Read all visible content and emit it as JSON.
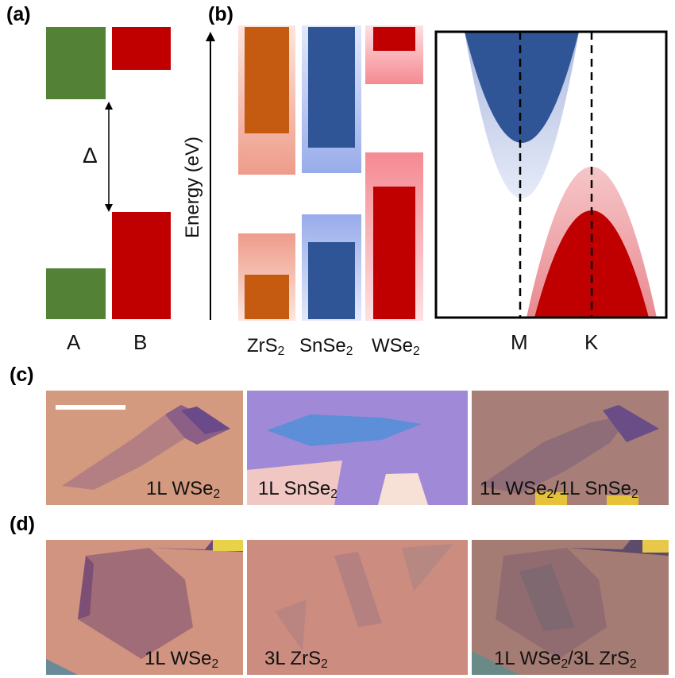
{
  "panels": {
    "a": "(a)",
    "b": "(b)",
    "c": "(c)",
    "d": "(d)"
  },
  "panel_a": {
    "gap_symbol": "Δ",
    "material_a": "A",
    "material_b": "B",
    "colors": {
      "A": "#538135",
      "B": "#c00000"
    }
  },
  "panel_b": {
    "y_axis_label": "Energy (eV)",
    "materials": [
      {
        "name": "ZrS",
        "sub": "2",
        "color": "#c55a11",
        "halo": "#f4b9a6"
      },
      {
        "name": "SnSe",
        "sub": "2",
        "color": "#2f5597",
        "halo": "#b4c4ec"
      },
      {
        "name": "WSe",
        "sub": "2",
        "color": "#c00000",
        "halo": "#f7a3a8"
      }
    ],
    "band_x_labels": [
      "M",
      "K"
    ]
  },
  "panel_c": {
    "captions": [
      {
        "text": "1L WSe",
        "sub": "2",
        "tail": ""
      },
      {
        "text": "1L SnSe",
        "sub": "2",
        "tail": ""
      },
      {
        "text": "1L WSe",
        "sub": "2",
        "tail": "/1L SnSe",
        "sub2": "2"
      }
    ]
  },
  "panel_d": {
    "captions": [
      {
        "text": "1L WSe",
        "sub": "2",
        "tail": ""
      },
      {
        "text": "3L ZrS",
        "sub": "2",
        "tail": ""
      },
      {
        "text": "1L WSe",
        "sub": "2",
        "tail": "/3L ZrS",
        "sub2": "2"
      }
    ]
  }
}
